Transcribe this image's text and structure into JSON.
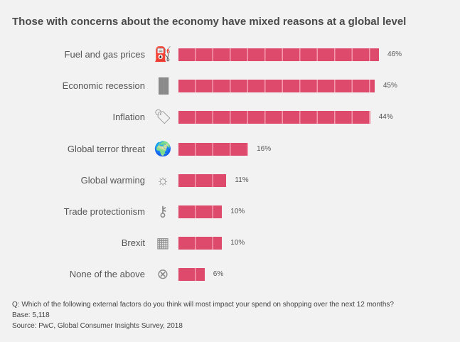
{
  "chart_data": {
    "type": "bar",
    "title": "Those with concerns about the economy have mixed reasons at a global level",
    "orientation": "horizontal",
    "categories": [
      "Fuel and gas prices",
      "Economic recession",
      "Inflation",
      "Global terror threat",
      "Global warming",
      "Trade protectionism",
      "Brexit",
      "None of the above"
    ],
    "icons": [
      "fuel-pump-icon",
      "bar-chart-decline-icon",
      "price-tag-icon",
      "globe-explosion-icon",
      "sun-icon",
      "key-icon",
      "union-jack-flag-icon",
      "x-circle-icon"
    ],
    "values": [
      46,
      45,
      44,
      16,
      11,
      10,
      10,
      6
    ],
    "value_labels": [
      "46%",
      "45%",
      "44%",
      "16%",
      "11%",
      "10%",
      "10%",
      "6%"
    ],
    "unit": "%",
    "bar_color": "#dd4a6c",
    "xlim": [
      0,
      50
    ]
  },
  "notes": {
    "question": "Q: Which of the following external factors do you think will most impact your spend on shopping over the next 12 months?",
    "base": "Base: 5,118",
    "source": "Source: PwC, Global Consumer Insights Survey, 2018"
  }
}
